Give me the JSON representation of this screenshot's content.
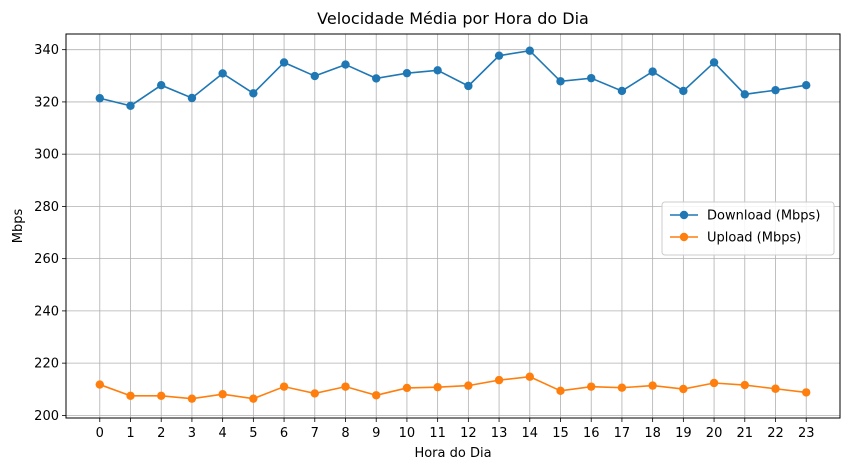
{
  "chart_data": {
    "type": "line",
    "title": "Velocidade Média por Hora do Dia",
    "xlabel": "Hora do Dia",
    "ylabel": "Mbps",
    "x": [
      0,
      1,
      2,
      3,
      4,
      5,
      6,
      7,
      8,
      9,
      10,
      11,
      12,
      13,
      14,
      15,
      16,
      17,
      18,
      19,
      20,
      21,
      22,
      23
    ],
    "ylim": [
      199,
      346
    ],
    "yticks": [
      200,
      220,
      240,
      260,
      280,
      300,
      320,
      340
    ],
    "grid": true,
    "legend_position": "center-right",
    "series": [
      {
        "name": "Download (Mbps)",
        "color": "#1f77b4",
        "values": [
          321.4,
          318.5,
          326.4,
          321.5,
          330.9,
          323.3,
          335.1,
          329.9,
          334.3,
          329.0,
          331.0,
          332.1,
          326.1,
          337.7,
          339.6,
          327.9,
          329.1,
          324.2,
          331.6,
          324.2,
          335.1,
          322.9,
          324.5,
          326.4
        ]
      },
      {
        "name": "Upload (Mbps)",
        "color": "#ff7f0e",
        "values": [
          211.8,
          207.5,
          207.5,
          206.4,
          208.1,
          206.4,
          211.0,
          208.4,
          211.0,
          207.7,
          210.5,
          210.8,
          211.4,
          213.5,
          214.8,
          209.4,
          211.0,
          210.6,
          211.4,
          210.1,
          212.4,
          211.6,
          210.2,
          208.8
        ]
      }
    ]
  }
}
